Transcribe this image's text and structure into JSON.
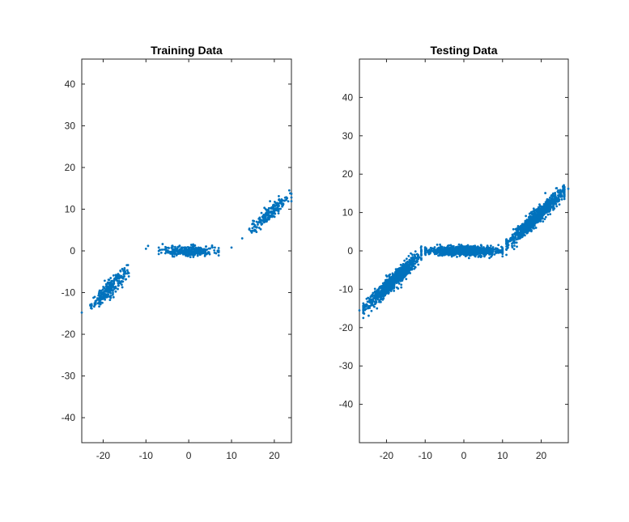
{
  "figure": {
    "background": "#ffffff",
    "marker_color": "#0072BD",
    "axis_color": "#262626"
  },
  "chart_data": [
    {
      "type": "scatter",
      "title": "Training Data",
      "xlabel": "",
      "ylabel": "",
      "xlim": [
        -25,
        24
      ],
      "ylim": [
        -46,
        46
      ],
      "xticks": [
        -20,
        -10,
        0,
        10,
        20
      ],
      "yticks": [
        -40,
        -30,
        -20,
        -10,
        0,
        10,
        20,
        30,
        40
      ],
      "grid": false,
      "legend": "none",
      "marker": "dot",
      "clusters": [
        {
          "name_hidden": true,
          "x_range": [
            -23,
            -14
          ],
          "slope": 1.0,
          "intercept": 9.5,
          "spread": 1.0,
          "count": 260
        },
        {
          "name_hidden": true,
          "x_range": [
            -7,
            7
          ],
          "slope": 0.0,
          "intercept": 0.0,
          "spread": 0.6,
          "count": 300
        },
        {
          "name_hidden": true,
          "x_range": [
            14,
            24
          ],
          "slope": 0.95,
          "intercept": -9.0,
          "spread": 0.9,
          "count": 200
        }
      ],
      "outliers": [
        [
          -25,
          -14.8
        ],
        [
          -9.5,
          1.2
        ],
        [
          -10,
          0.5
        ],
        [
          10,
          0.8
        ],
        [
          12.5,
          3
        ],
        [
          23.5,
          14.5
        ],
        [
          24,
          12.8
        ]
      ]
    },
    {
      "type": "scatter",
      "title": "Testing Data",
      "xlabel": "",
      "ylabel": "",
      "xlim": [
        -27,
        27
      ],
      "ylim": [
        -50,
        50
      ],
      "xticks": [
        -20,
        -10,
        0,
        10,
        20
      ],
      "yticks": [
        -40,
        -30,
        -20,
        -10,
        0,
        10,
        20,
        30,
        40
      ],
      "grid": false,
      "legend": "none",
      "marker": "dot",
      "clusters": [
        {
          "name_hidden": true,
          "x_range": [
            -26,
            -11
          ],
          "slope": 0.95,
          "intercept": 9.5,
          "spread": 1.0,
          "count": 900
        },
        {
          "name_hidden": true,
          "x_range": [
            -10,
            10
          ],
          "slope": 0.0,
          "intercept": 0.0,
          "spread": 0.6,
          "count": 900
        },
        {
          "name_hidden": true,
          "x_range": [
            11,
            26
          ],
          "slope": 0.95,
          "intercept": -9.0,
          "spread": 1.0,
          "count": 900
        }
      ],
      "outliers": [
        [
          -27,
          -15.5
        ],
        [
          26,
          16
        ],
        [
          27,
          16.2
        ]
      ]
    }
  ]
}
